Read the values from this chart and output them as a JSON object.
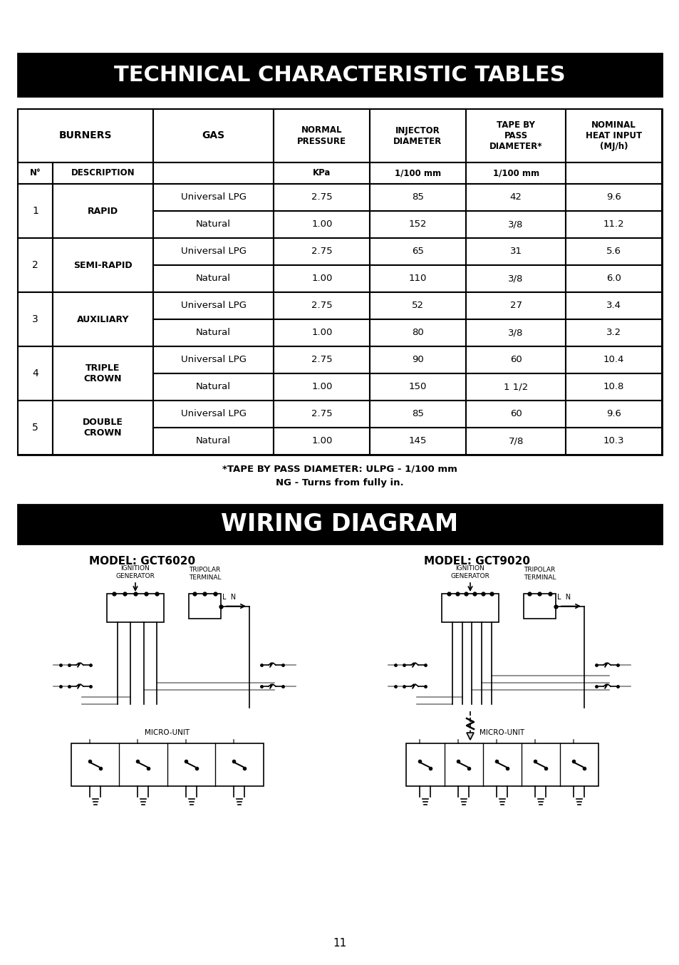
{
  "title1": "TECHNICAL CHARACTERISTIC TABLES",
  "title2": "WIRING DIAGRAM",
  "page_number": "11",
  "background_color": "#ffffff",
  "header_bg": "#000000",
  "header_fg": "#ffffff",
  "table_headers": [
    "BURNERS",
    "",
    "GAS",
    "NORMAL\nPRESSURE",
    "INJECTOR\nDIAMETER",
    "TAPE BY\nPASS\nDIAMETER*",
    "NOMINAL\nHEAT INPUT\n(MJ/h)"
  ],
  "sub_headers": [
    "N°",
    "DESCRIPTION",
    "",
    "KPa",
    "1/100 mm",
    "1/100 mm",
    ""
  ],
  "rows": [
    [
      1,
      "RAPID",
      "Universal LPG",
      "2.75",
      "85",
      "42",
      "9.6"
    ],
    [
      1,
      "RAPID",
      "Natural",
      "1.00",
      "152",
      "3/8",
      "11.2"
    ],
    [
      2,
      "SEMI-RAPID",
      "Universal LPG",
      "2.75",
      "65",
      "31",
      "5.6"
    ],
    [
      2,
      "SEMI-RAPID",
      "Natural",
      "1.00",
      "110",
      "3/8",
      "6.0"
    ],
    [
      3,
      "AUXILIARY",
      "Universal LPG",
      "2.75",
      "52",
      "27",
      "3.4"
    ],
    [
      3,
      "AUXILIARY",
      "Natural",
      "1.00",
      "80",
      "3/8",
      "3.2"
    ],
    [
      4,
      "TRIPLE\nCROWN",
      "Universal LPG",
      "2.75",
      "90",
      "60",
      "10.4"
    ],
    [
      4,
      "TRIPLE\nCROWN",
      "Natural",
      "1.00",
      "150",
      "1 1/2",
      "10.8"
    ],
    [
      5,
      "DOUBLE\nCROWN",
      "Universal LPG",
      "2.75",
      "85",
      "60",
      "9.6"
    ],
    [
      5,
      "DOUBLE\nCROWN",
      "Natural",
      "1.00",
      "145",
      "7/8",
      "10.3"
    ]
  ],
  "footnote1": "*TAPE BY PASS DIAMETER: ULPG - 1/100 mm",
  "footnote2": "NG - Turns from fully in.",
  "model1": "MODEL: GCT6020",
  "model2": "MODEL: GCT9020"
}
